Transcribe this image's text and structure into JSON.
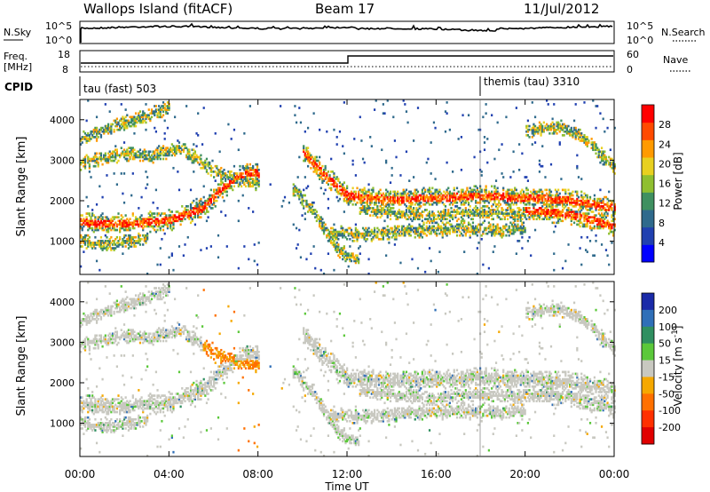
{
  "header": {
    "station": "Wallops Island (fitACF)",
    "beam": "Beam 17",
    "date": "11/Jul/2012"
  },
  "noise_panel": {
    "left_label": "N.Sky",
    "right_label": "N.Search",
    "top_tick": "10^5",
    "bottom_tick": "10^0",
    "right_top_tick": "10^5",
    "right_bottom_tick": "10^0"
  },
  "freq_panel": {
    "left_label_line1": "Freq.",
    "left_label_line2": "[MHz]",
    "right_label": "Nave",
    "left_top_tick": "18",
    "left_bottom_tick": "8",
    "right_top_tick": "60",
    "right_bottom_tick": "0"
  },
  "cpid": {
    "label": "CPID",
    "first": "tau (fast) 503",
    "second": "themis (tau) 3310"
  },
  "chart_data": [
    {
      "type": "heatmap",
      "title": "",
      "ylabel": "Slant Range [km]",
      "xlabel": "",
      "ylim": [
        180,
        4500
      ],
      "yticks": [
        1000,
        2000,
        3000,
        4000
      ],
      "colorbar_label": "Power [dB]",
      "colorbar_ticks": [
        4,
        8,
        12,
        16,
        20,
        24,
        28
      ],
      "colorbar_range": [
        0,
        32
      ],
      "colors": [
        "#0000ff",
        "#2040b0",
        "#2f6a8c",
        "#3f9060",
        "#8fbf30",
        "#e8d020",
        "#ff9a00",
        "#ff4a00",
        "#ff0000"
      ]
    },
    {
      "type": "heatmap",
      "title": "",
      "ylabel": "Slant Range [km]",
      "xlabel": "Time UT",
      "ylim": [
        180,
        4500
      ],
      "yticks": [
        1000,
        2000,
        3000,
        4000
      ],
      "colorbar_label": "Velocity [m s-1]",
      "colorbar_ticks": [
        200,
        100,
        50,
        15,
        -15,
        -50,
        -100,
        -200
      ],
      "colors": [
        "#1a2aa8",
        "#2f6fb8",
        "#2f8f60",
        "#5bc83a",
        "#c8c8c0",
        "#f5a800",
        "#ff7000",
        "#ff3000",
        "#e00000"
      ]
    }
  ],
  "time_axis": {
    "label": "Time UT",
    "ticks": [
      "00:00",
      "04:00",
      "08:00",
      "12:00",
      "16:00",
      "20:00",
      "00:00"
    ]
  }
}
